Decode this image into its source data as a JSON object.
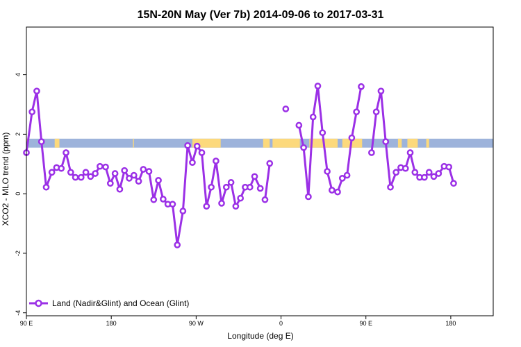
{
  "chart_data": {
    "type": "line",
    "title": "15N-20N May (Ver 7b)   2014-09-06 to 2017-03-31",
    "xlabel": "Longitude (deg E)",
    "ylabel": "XCO2 - MLO trend (ppm)",
    "xlim": [
      0,
      495
    ],
    "ylim": [
      -4.1,
      5.6
    ],
    "x_ticks": [
      {
        "value": 0,
        "label": "90 E"
      },
      {
        "value": 90,
        "label": "180"
      },
      {
        "value": 180,
        "label": "90 W"
      },
      {
        "value": 270,
        "label": "0"
      },
      {
        "value": 360,
        "label": "90 E"
      },
      {
        "value": 450,
        "label": "180"
      }
    ],
    "y_ticks": [
      -4,
      -2,
      0,
      2,
      4
    ],
    "grid": false,
    "legend_position": "bottom-left",
    "band": {
      "y_range": [
        1.55,
        1.85
      ],
      "base_color": "#9db3db",
      "land_color": "#fcd97c",
      "land_segments": [
        [
          0,
          2
        ],
        [
          30,
          35
        ],
        [
          113,
          114
        ],
        [
          176,
          206
        ],
        [
          251,
          258
        ],
        [
          261,
          290
        ],
        [
          300,
          330
        ],
        [
          335,
          356
        ],
        [
          394,
          398
        ],
        [
          404,
          415
        ],
        [
          424,
          427
        ]
      ]
    },
    "series": [
      {
        "name": "Land (Nadir&Glint) and Ocean (Glint)",
        "color": "#9b30e6",
        "segments": [
          [
            [
              0,
              1.38
            ],
            [
              6,
              2.75
            ],
            [
              11,
              3.45
            ],
            [
              16,
              1.75
            ],
            [
              21,
              0.22
            ],
            [
              27,
              0.72
            ],
            [
              32,
              0.88
            ],
            [
              37,
              0.85
            ],
            [
              42,
              1.38
            ],
            [
              47,
              0.72
            ],
            [
              52,
              0.55
            ],
            [
              58,
              0.55
            ],
            [
              63,
              0.72
            ],
            [
              68,
              0.58
            ],
            [
              73,
              0.68
            ],
            [
              78,
              0.92
            ],
            [
              84,
              0.9
            ],
            [
              89,
              0.35
            ],
            [
              94,
              0.68
            ],
            [
              99,
              0.15
            ],
            [
              104,
              0.78
            ],
            [
              109,
              0.52
            ],
            [
              114,
              0.62
            ],
            [
              119,
              0.42
            ],
            [
              124,
              0.82
            ],
            [
              130,
              0.75
            ],
            [
              135,
              -0.2
            ],
            [
              140,
              0.45
            ],
            [
              145,
              -0.18
            ],
            [
              150,
              -0.35
            ],
            [
              155,
              -0.35
            ],
            [
              160,
              -1.72
            ],
            [
              166,
              -0.58
            ],
            [
              171,
              1.62
            ],
            [
              176,
              1.05
            ],
            [
              181,
              1.6
            ],
            [
              186,
              1.38
            ],
            [
              191,
              -0.42
            ],
            [
              196,
              0.22
            ],
            [
              201,
              1.1
            ],
            [
              207,
              -0.32
            ],
            [
              212,
              0.22
            ],
            [
              217,
              0.38
            ],
            [
              222,
              -0.42
            ],
            [
              227,
              -0.15
            ],
            [
              232,
              0.22
            ],
            [
              237,
              0.22
            ],
            [
              242,
              0.58
            ],
            [
              248,
              0.18
            ]
          ],
          [
            [
              253,
              -0.2
            ],
            [
              258,
              1.02
            ]
          ],
          [
            [
              275,
              2.85
            ]
          ],
          [
            [
              289,
              2.3
            ],
            [
              294,
              1.55
            ],
            [
              299,
              -0.1
            ],
            [
              304,
              2.58
            ],
            [
              309,
              3.62
            ],
            [
              314,
              2.05
            ],
            [
              319,
              0.75
            ],
            [
              324,
              0.12
            ],
            [
              330,
              0.06
            ],
            [
              335,
              0.52
            ],
            [
              340,
              0.62
            ],
            [
              345,
              1.88
            ],
            [
              350,
              2.75
            ],
            [
              355,
              3.6
            ]
          ],
          [
            [
              366,
              1.38
            ],
            [
              371,
              2.75
            ],
            [
              376,
              3.45
            ],
            [
              381,
              1.75
            ],
            [
              386,
              0.22
            ],
            [
              392,
              0.72
            ],
            [
              397,
              0.88
            ],
            [
              402,
              0.85
            ],
            [
              407,
              1.38
            ],
            [
              412,
              0.72
            ],
            [
              417,
              0.55
            ],
            [
              422,
              0.55
            ],
            [
              427,
              0.72
            ],
            [
              432,
              0.58
            ],
            [
              437,
              0.68
            ],
            [
              443,
              0.92
            ],
            [
              448,
              0.9
            ],
            [
              453,
              0.35
            ]
          ]
        ]
      }
    ]
  }
}
